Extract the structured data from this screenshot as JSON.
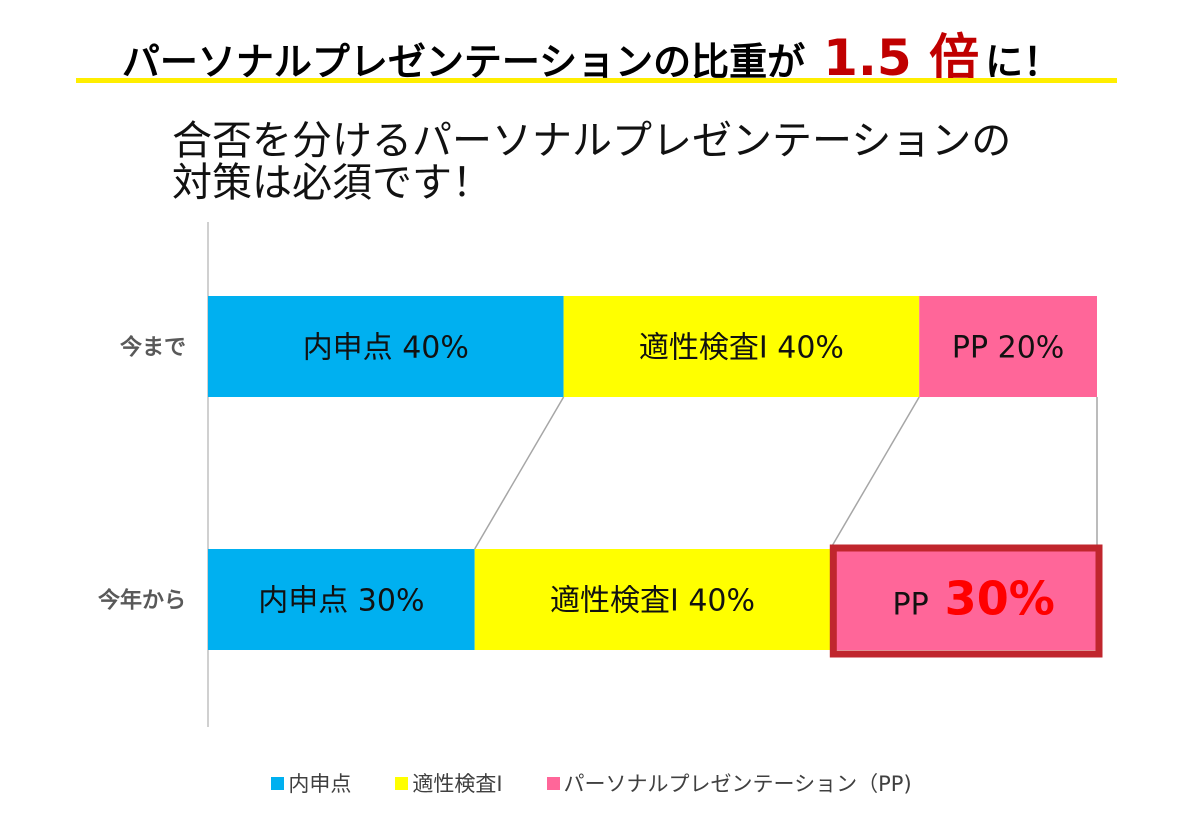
{
  "headline": {
    "prefix": "パーソナルプレゼンテーションの比重が",
    "accent": "1.5 倍",
    "suffix": "に！"
  },
  "subtitle": {
    "line1": "合否を分けるパーソナルプレゼンテーションの",
    "line2": "対策は必須です！"
  },
  "chart_data": {
    "type": "bar",
    "orientation": "horizontal",
    "stacked": true,
    "percent_stacked": true,
    "categories": [
      "今まで",
      "今年から"
    ],
    "series": [
      {
        "name": "内申点",
        "color": "#00b0f0",
        "values": [
          40,
          30
        ],
        "labels": [
          "内申点  40%",
          "内申点  30%"
        ]
      },
      {
        "name": "適性検査Ⅰ",
        "color": "#ffff00",
        "values": [
          40,
          40
        ],
        "labels": [
          "適性検査Ⅰ  40%",
          "適性検査Ⅰ  40%"
        ]
      },
      {
        "name": "パーソナルプレゼンテーション（PP)",
        "color": "#ff6699",
        "values": [
          20,
          30
        ],
        "labels": [
          "PP  20%",
          "PP"
        ],
        "emphasis_value": "30%"
      }
    ],
    "highlight": {
      "category": "今年から",
      "series": "パーソナルプレゼンテーション（PP)",
      "border_color": "#c0262d",
      "value_color": "#ff0000"
    },
    "legend_position": "bottom",
    "series_lines": true,
    "xlim": [
      0,
      100
    ]
  }
}
